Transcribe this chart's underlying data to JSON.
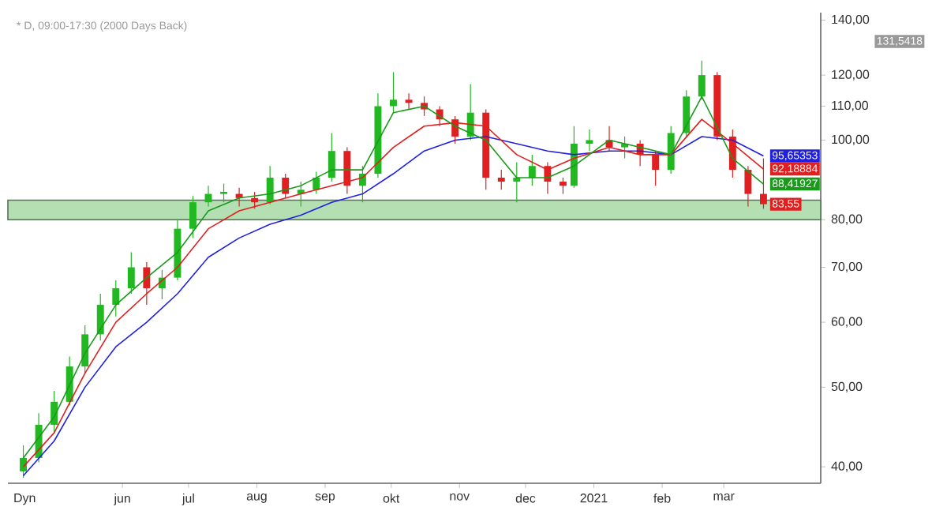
{
  "chart_data": {
    "type": "candlestick",
    "title": "* D, 09:00-17:30 (2000 Days Back)",
    "log": "y",
    "grid": false,
    "xlim": [
      "2020-04-10",
      "2021-04-14"
    ],
    "xticks": [
      {
        "value": "2020-06-01",
        "label": "jun"
      },
      {
        "value": "2020-07-01",
        "label": "jul"
      },
      {
        "value": "2020-08-01",
        "label": "aug"
      },
      {
        "value": "2020-09-01",
        "label": "sep"
      },
      {
        "value": "2020-10-01",
        "label": "okt"
      },
      {
        "value": "2020-11-01",
        "label": "nov"
      },
      {
        "value": "2020-12-01",
        "label": "dec"
      },
      {
        "value": "2021-01-01",
        "label": "2021"
      },
      {
        "value": "2021-02-01",
        "label": "feb"
      },
      {
        "value": "2021-03-01",
        "label": "mar"
      }
    ],
    "ylim": [
      38.2,
      143
    ],
    "yticks": [
      {
        "value": 40,
        "label": "40,00"
      },
      {
        "value": 50,
        "label": "50,00"
      },
      {
        "value": 60,
        "label": "60,00"
      },
      {
        "value": 70,
        "label": "70,00"
      },
      {
        "value": 80,
        "label": "80,00"
      },
      {
        "value": 100,
        "label": "100,00"
      },
      {
        "value": 110,
        "label": "110,00"
      },
      {
        "value": 120,
        "label": "120,00"
      },
      {
        "value": 140,
        "label": "140,00"
      }
    ],
    "bands": [
      {
        "axis": "y",
        "from": 80,
        "to": 84.5,
        "color": "#b3dfb3"
      }
    ],
    "annotations": [
      "Dyn",
      "131,5418"
    ],
    "series": [
      {
        "x": [
          "2020-04-17",
          "2020-04-24",
          "2020-05-01",
          "2020-05-08",
          "2020-05-15",
          "2020-05-22",
          "2020-05-29",
          "2020-06-05",
          "2020-06-12",
          "2020-06-19",
          "2020-06-26",
          "2020-07-03",
          "2020-07-10",
          "2020-07-17",
          "2020-07-24",
          "2020-07-31",
          "2020-08-07",
          "2020-08-14",
          "2020-08-21",
          "2020-08-28",
          "2020-09-04",
          "2020-09-11",
          "2020-09-18",
          "2020-09-25",
          "2020-10-02",
          "2020-10-09",
          "2020-10-16",
          "2020-10-23",
          "2020-10-30",
          "2020-11-06",
          "2020-11-13",
          "2020-11-20",
          "2020-11-27",
          "2020-12-04",
          "2020-12-11",
          "2020-12-18",
          "2020-12-23",
          "2020-12-30",
          "2021-01-08",
          "2021-01-15",
          "2021-01-22",
          "2021-01-29",
          "2021-02-05",
          "2021-02-12",
          "2021-02-19",
          "2021-02-26",
          "2021-03-05",
          "2021-03-12",
          "2021-03-19"
        ],
        "ohlc": [
          [
            39.5,
            42.5,
            38.8,
            41
          ],
          [
            41,
            46.5,
            40.5,
            45
          ],
          [
            45,
            49.5,
            44,
            48
          ],
          [
            48,
            54.5,
            47.5,
            53
          ],
          [
            53,
            59.5,
            52,
            58
          ],
          [
            58,
            65,
            57,
            63
          ],
          [
            63,
            67.5,
            61,
            66
          ],
          [
            66,
            73,
            65,
            70
          ],
          [
            70,
            71,
            63,
            66
          ],
          [
            66,
            69.5,
            64,
            68
          ],
          [
            68,
            80,
            67.5,
            78
          ],
          [
            78,
            85.5,
            76,
            84
          ],
          [
            84,
            88,
            83,
            86
          ],
          [
            86,
            88.5,
            84,
            86.5
          ],
          [
            86,
            87.5,
            83,
            85
          ],
          [
            85,
            86.5,
            82.5,
            84
          ],
          [
            84,
            93,
            83.5,
            90
          ],
          [
            90,
            91,
            85,
            86
          ],
          [
            86,
            89,
            83,
            87
          ],
          [
            87,
            91.5,
            86,
            90
          ],
          [
            90,
            102,
            89,
            97
          ],
          [
            97,
            98,
            86,
            88
          ],
          [
            88,
            93,
            84,
            91
          ],
          [
            91,
            114,
            90,
            110
          ],
          [
            110,
            121,
            108,
            112
          ],
          [
            112,
            114,
            109,
            111
          ],
          [
            111,
            113,
            107,
            109
          ],
          [
            109,
            110,
            104,
            106
          ],
          [
            106,
            107,
            99,
            101
          ],
          [
            101,
            117,
            100,
            108
          ],
          [
            108,
            109,
            87,
            90
          ],
          [
            90,
            92,
            87,
            89
          ],
          [
            89,
            94,
            84,
            90
          ],
          [
            90,
            96,
            88,
            93
          ],
          [
            93,
            94,
            86,
            89
          ],
          [
            89,
            90,
            86,
            88
          ],
          [
            88,
            104,
            87.5,
            99
          ],
          [
            99,
            103,
            97,
            100
          ],
          [
            100,
            104,
            97,
            98
          ],
          [
            98,
            101,
            95,
            99
          ],
          [
            99,
            100,
            93,
            96
          ],
          [
            96,
            97,
            88,
            92
          ],
          [
            92,
            104,
            91,
            102
          ],
          [
            102,
            115,
            101,
            113
          ],
          [
            113,
            125,
            112,
            120
          ],
          [
            120,
            121,
            100,
            101
          ],
          [
            101,
            103,
            90,
            92
          ],
          [
            92,
            93,
            83,
            86
          ],
          [
            86,
            95,
            82.5,
            83.55
          ]
        ],
        "colors": [
          "#22b822",
          "#22b822",
          "#22b822",
          "#22b822",
          "#22b822",
          "#22b822",
          "#22b822",
          "#22b822",
          "#e02020",
          "#22b822",
          "#22b822",
          "#22b822",
          "#22b822",
          "#22b822",
          "#e02020",
          "#e02020",
          "#22b822",
          "#e02020",
          "#22b822",
          "#22b822",
          "#22b822",
          "#e02020",
          "#22b822",
          "#22b822",
          "#22b822",
          "#e02020",
          "#e02020",
          "#e02020",
          "#e02020",
          "#22b822",
          "#e02020",
          "#e02020",
          "#22b822",
          "#22b822",
          "#e02020",
          "#e02020",
          "#22b822",
          "#22b822",
          "#e02020",
          "#22b822",
          "#e02020",
          "#e02020",
          "#22b822",
          "#22b822",
          "#22b822",
          "#e02020",
          "#e02020",
          "#e02020",
          "#e02020"
        ],
        "value_labels": [
          null,
          null,
          null,
          null,
          null,
          null,
          null,
          null,
          null,
          null,
          null,
          null,
          null,
          null,
          null,
          null,
          null,
          null,
          null,
          null,
          null,
          null,
          null,
          null,
          null,
          null,
          null,
          null,
          null,
          null,
          null,
          null,
          null,
          null,
          null,
          null,
          null,
          null,
          null,
          null,
          null,
          null,
          null,
          null,
          null,
          null,
          null,
          null,
          "83,55"
        ]
      },
      {
        "type": "line",
        "color": "#2020e0",
        "x": [
          "2020-04-17",
          "2020-05-01",
          "2020-05-15",
          "2020-05-29",
          "2020-06-12",
          "2020-06-26",
          "2020-07-10",
          "2020-07-24",
          "2020-08-07",
          "2020-08-21",
          "2020-09-04",
          "2020-09-18",
          "2020-10-02",
          "2020-10-16",
          "2020-10-30",
          "2020-11-13",
          "2020-11-27",
          "2020-12-11",
          "2020-12-23",
          "2021-01-08",
          "2021-01-22",
          "2021-02-05",
          "2021-02-19",
          "2021-03-05",
          "2021-03-19"
        ],
        "values": [
          39,
          43,
          50,
          56,
          60,
          65,
          72,
          76,
          79,
          81,
          84,
          86,
          91,
          97,
          100,
          101,
          99,
          97,
          96,
          97,
          97,
          96,
          101,
          100,
          95.65353
        ],
        "value_labels": [
          null,
          null,
          null,
          null,
          null,
          null,
          null,
          null,
          null,
          null,
          null,
          null,
          null,
          null,
          null,
          null,
          null,
          null,
          null,
          null,
          null,
          null,
          null,
          null,
          "95,65353"
        ]
      },
      {
        "type": "line",
        "color": "#e02020",
        "x": [
          "2020-04-17",
          "2020-05-01",
          "2020-05-15",
          "2020-05-29",
          "2020-06-12",
          "2020-06-26",
          "2020-07-10",
          "2020-07-24",
          "2020-08-07",
          "2020-08-21",
          "2020-09-04",
          "2020-09-18",
          "2020-10-02",
          "2020-10-16",
          "2020-10-30",
          "2020-11-13",
          "2020-11-27",
          "2020-12-11",
          "2020-12-23",
          "2021-01-08",
          "2021-01-22",
          "2021-02-05",
          "2021-02-19",
          "2021-03-05",
          "2021-03-19"
        ],
        "values": [
          40,
          44,
          52,
          60,
          65,
          70,
          78,
          82,
          84,
          86,
          88,
          90,
          98,
          104,
          105,
          104,
          96,
          92,
          95,
          98,
          96,
          96,
          106,
          99,
          92.18884
        ],
        "value_labels": [
          null,
          null,
          null,
          null,
          null,
          null,
          null,
          null,
          null,
          null,
          null,
          null,
          null,
          null,
          null,
          null,
          null,
          null,
          null,
          null,
          null,
          null,
          null,
          null,
          "92,18884"
        ]
      },
      {
        "type": "line",
        "color": "#1a9a1a",
        "x": [
          "2020-04-17",
          "2020-05-01",
          "2020-05-15",
          "2020-05-29",
          "2020-06-12",
          "2020-06-26",
          "2020-07-10",
          "2020-07-24",
          "2020-08-07",
          "2020-08-21",
          "2020-09-04",
          "2020-09-18",
          "2020-10-02",
          "2020-10-16",
          "2020-10-30",
          "2020-11-13",
          "2020-11-27",
          "2020-12-11",
          "2020-12-23",
          "2021-01-08",
          "2021-01-22",
          "2021-02-05",
          "2021-02-19",
          "2021-03-05",
          "2021-03-19"
        ],
        "values": [
          41,
          46,
          55,
          63,
          68,
          73,
          82,
          85,
          86,
          88,
          92,
          92,
          108,
          110,
          104,
          100,
          90,
          90,
          93,
          100,
          98,
          96,
          113,
          95,
          88.41927
        ],
        "value_labels": [
          null,
          null,
          null,
          null,
          null,
          null,
          null,
          null,
          null,
          null,
          null,
          null,
          null,
          null,
          null,
          null,
          null,
          null,
          null,
          null,
          null,
          null,
          null,
          null,
          "88,41927"
        ]
      }
    ]
  }
}
